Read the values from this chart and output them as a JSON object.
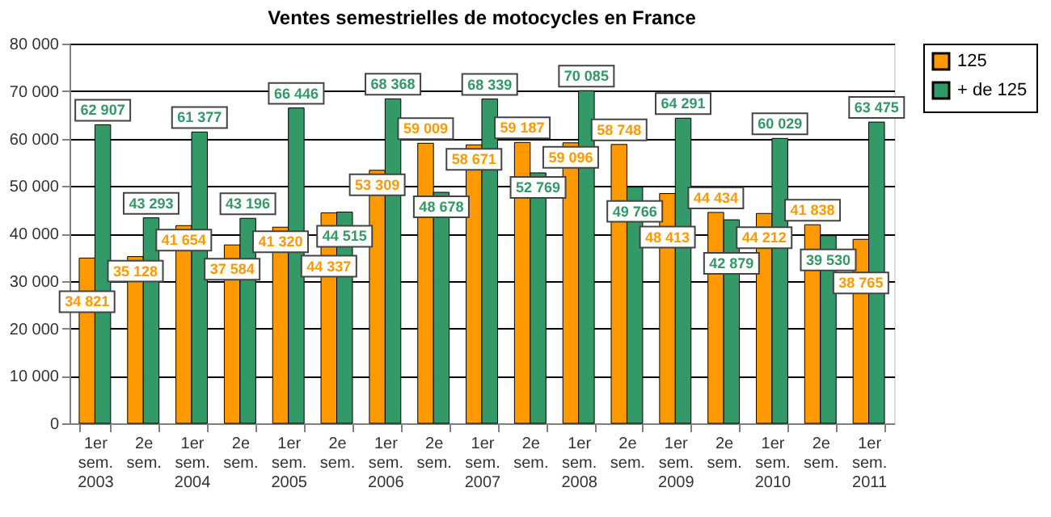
{
  "chart_data": {
    "type": "bar",
    "title": "Ventes semestrielles de motocycles en France",
    "categories": [
      "1er sem. 2003",
      "2e sem.",
      "1er sem. 2004",
      "2e sem.",
      "1er sem. 2005",
      "2e sem.",
      "1er sem. 2006",
      "2e sem.",
      "1er sem. 2007",
      "2e sem.",
      "1er sem. 2008",
      "2e sem.",
      "1er sem. 2009",
      "2e sem.",
      "1er sem. 2010",
      "2e sem.",
      "1er sem. 2011"
    ],
    "series": [
      {
        "name": "125",
        "color": "#ff9900",
        "values": [
          34821,
          35128,
          41654,
          37584,
          41320,
          44337,
          53309,
          59009,
          58671,
          59187,
          59096,
          58748,
          48413,
          44434,
          44212,
          41838,
          38765
        ]
      },
      {
        "name": "+ de 125",
        "color": "#339966",
        "values": [
          62907,
          43293,
          61377,
          43196,
          66446,
          44515,
          68368,
          48678,
          68339,
          52769,
          70085,
          49766,
          64291,
          42879,
          60029,
          39530,
          63475
        ]
      }
    ],
    "ylim": [
      0,
      80000
    ],
    "yticks": [
      {
        "value": 0,
        "label": "0"
      },
      {
        "value": 10000,
        "label": "10 000"
      },
      {
        "value": 20000,
        "label": "20 000"
      },
      {
        "value": 30000,
        "label": "30 000"
      },
      {
        "value": 40000,
        "label": "40 000"
      },
      {
        "value": 50000,
        "label": "50 000"
      },
      {
        "value": 60000,
        "label": "60 000"
      },
      {
        "value": 70000,
        "label": "70 000"
      },
      {
        "value": 80000,
        "label": "80 000"
      }
    ],
    "grid": "y",
    "legend": "right",
    "data_labels": true
  }
}
